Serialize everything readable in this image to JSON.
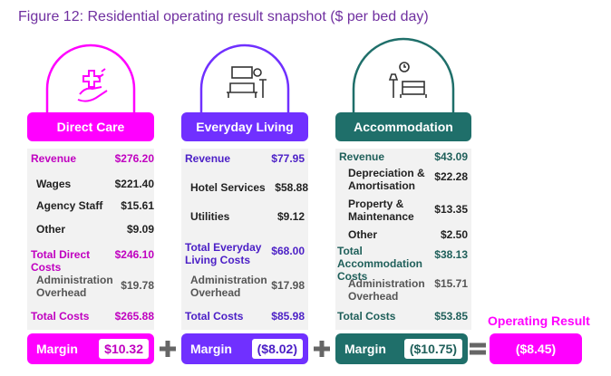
{
  "figure_title": "Figure 12: Residential operating result snapshot ($ per bed day)",
  "colors": {
    "direct_care": "#ff00ff",
    "direct_care_text": "#c000c0",
    "everyday_living": "#7030ff",
    "everyday_living_text": "#4b1fc6",
    "accommodation": "#1f6f6a",
    "accommodation_text": "#1f5f5a",
    "title": "#7030a0"
  },
  "columns": [
    {
      "id": "direct_care",
      "title": "Direct Care",
      "icon": "hands-medical-cross-icon",
      "rows": [
        {
          "label": "Revenue",
          "value": "$276.20",
          "style": "colored"
        },
        {
          "label": "Wages",
          "value": "$221.40",
          "style": "indent"
        },
        {
          "label": "Agency Staff",
          "value": "$15.61",
          "style": "indent"
        },
        {
          "label": "Other",
          "value": "$9.09",
          "style": "indent"
        },
        {
          "label": "Total Direct Costs",
          "value": "$246.10",
          "style": "colored"
        },
        {
          "label": "Administration\nOverhead",
          "value": "$19.78",
          "style": "indent-muted"
        },
        {
          "label": "Total Costs",
          "value": "$265.88",
          "style": "colored"
        }
      ],
      "margin_label": "Margin",
      "margin_value": "$10.32"
    },
    {
      "id": "everyday_living",
      "title": "Everyday Living",
      "icon": "armchair-room-icon",
      "rows": [
        {
          "label": "Revenue",
          "value": "$77.95",
          "style": "colored"
        },
        {
          "label": "Hotel Services",
          "value": "$58.88",
          "style": "indent"
        },
        {
          "label": "Utilities",
          "value": "$9.12",
          "style": "indent"
        },
        {
          "label": "Total Everyday\nLiving Costs",
          "value": "$68.00",
          "style": "colored"
        },
        {
          "label": "Administration\nOverhead",
          "value": "$17.98",
          "style": "indent-muted"
        },
        {
          "label": "Total Costs",
          "value": "$85.98",
          "style": "colored"
        }
      ],
      "margin_label": "Margin",
      "margin_value": "($8.02)"
    },
    {
      "id": "accommodation",
      "title": "Accommodation",
      "icon": "bed-lamp-clock-icon",
      "rows": [
        {
          "label": "Revenue",
          "value": "$43.09",
          "style": "colored"
        },
        {
          "label": "Depreciation &\nAmortisation",
          "value": "$22.28",
          "style": "indent"
        },
        {
          "label": "Property &\nMaintenance",
          "value": "$13.35",
          "style": "indent"
        },
        {
          "label": "Other",
          "value": "$2.50",
          "style": "indent"
        },
        {
          "label": "Total Accommodation\nCosts",
          "value": "$38.13",
          "style": "colored"
        },
        {
          "label": "Administration\nOverhead",
          "value": "$15.71",
          "style": "indent-muted"
        },
        {
          "label": "Total Costs",
          "value": "$53.85",
          "style": "colored"
        }
      ],
      "margin_label": "Margin",
      "margin_value": "($10.75)"
    }
  ],
  "operators": [
    "+",
    "+",
    "="
  ],
  "result": {
    "label": "Operating Result",
    "value": "($8.45)"
  }
}
